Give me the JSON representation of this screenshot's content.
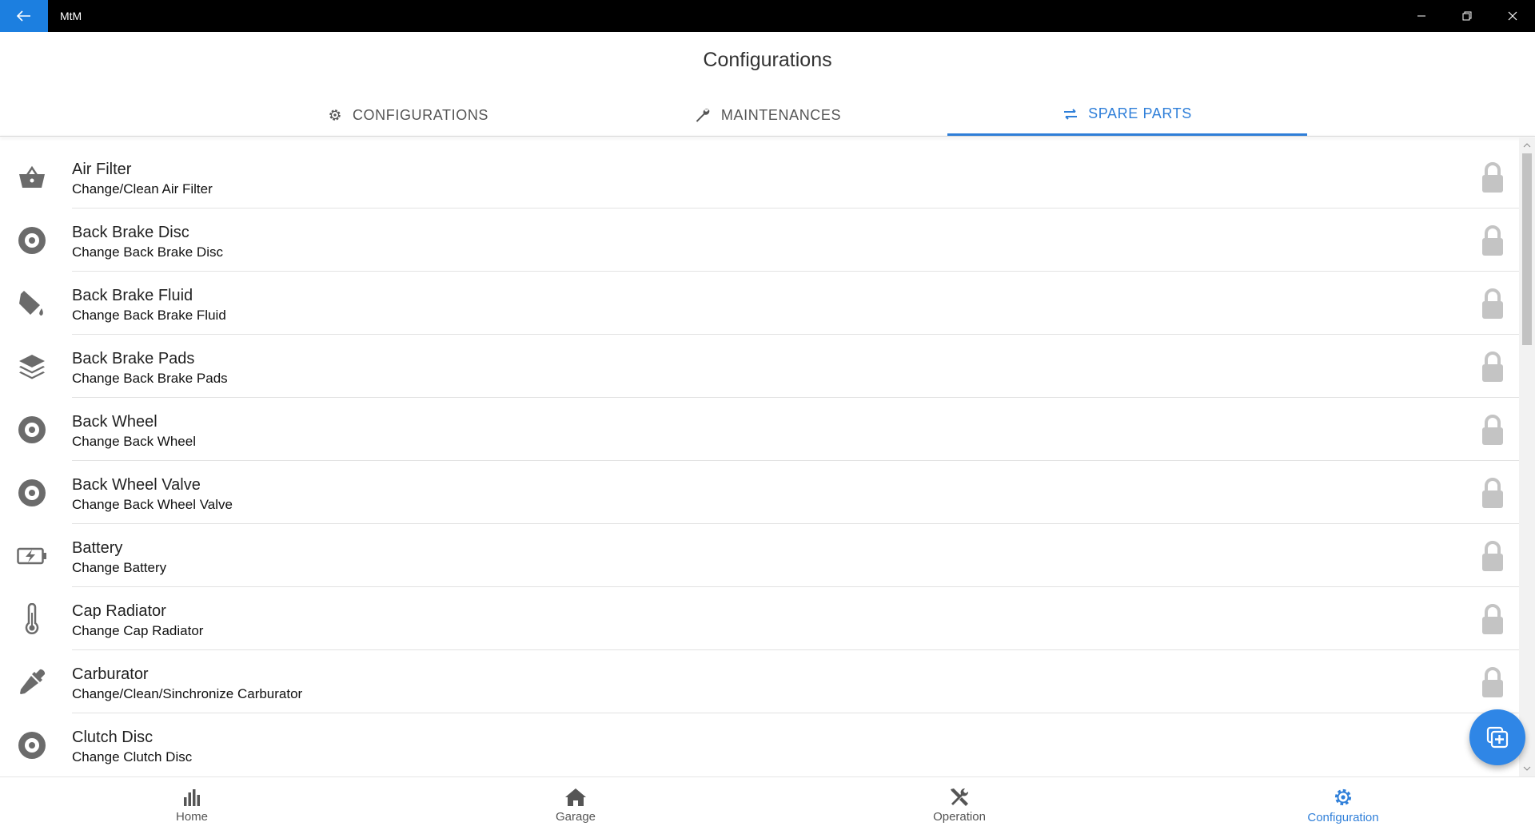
{
  "window": {
    "title": "MtM"
  },
  "header": {
    "title": "Configurations"
  },
  "tabs": [
    {
      "label": "CONFIGURATIONS",
      "icon": "gear-icon"
    },
    {
      "label": "MAINTENANCES",
      "icon": "wrench-icon"
    },
    {
      "label": "SPARE PARTS",
      "icon": "swap-icon",
      "active": true
    }
  ],
  "items": [
    {
      "title": "Air Filter",
      "subtitle": "Change/Clean Air Filter",
      "icon": "basket-icon"
    },
    {
      "title": "Back Brake Disc",
      "subtitle": "Change Back Brake Disc",
      "icon": "disc-icon"
    },
    {
      "title": "Back Brake Fluid",
      "subtitle": "Change Back Brake Fluid",
      "icon": "paint-bucket-icon"
    },
    {
      "title": "Back Brake Pads",
      "subtitle": "Change Back Brake Pads",
      "icon": "layers-icon"
    },
    {
      "title": "Back Wheel",
      "subtitle": "Change Back Wheel",
      "icon": "disc-icon"
    },
    {
      "title": "Back Wheel Valve",
      "subtitle": "Change Back Wheel Valve",
      "icon": "disc-icon"
    },
    {
      "title": "Battery",
      "subtitle": "Change Battery",
      "icon": "battery-charging-icon"
    },
    {
      "title": "Cap Radiator",
      "subtitle": "Change Cap Radiator",
      "icon": "thermometer-icon"
    },
    {
      "title": "Carburator",
      "subtitle": "Change/Clean/Sinchronize Carburator",
      "icon": "dropper-icon"
    },
    {
      "title": "Clutch Disc",
      "subtitle": "Change Clutch Disc",
      "icon": "disc-icon"
    }
  ],
  "bottom_nav": [
    {
      "label": "Home",
      "icon": "bar-chart-icon"
    },
    {
      "label": "Garage",
      "icon": "house-icon"
    },
    {
      "label": "Operation",
      "icon": "tools-icon"
    },
    {
      "label": "Configuration",
      "icon": "gear-icon",
      "active": true
    }
  ],
  "colors": {
    "accent": "#2f7fd9",
    "titlebar": "#000000",
    "back_button": "#1c7fe0",
    "fab": "#2f86e6",
    "icon_grey": "#6b6b6b",
    "lock_grey": "#c4c4c4"
  }
}
